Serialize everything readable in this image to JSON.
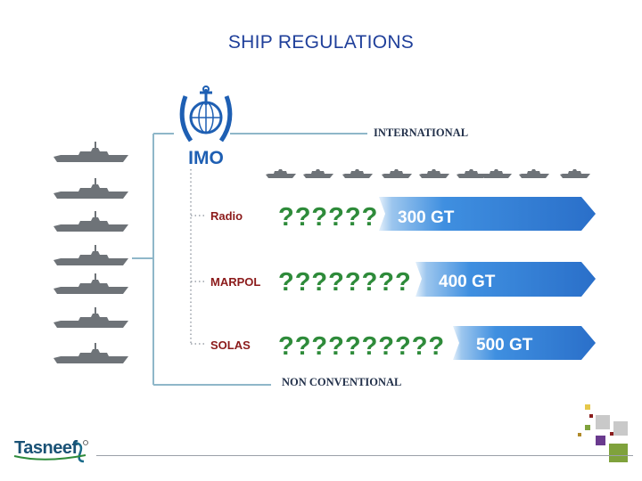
{
  "title": "SHIP REGULATIONS",
  "org": "IMO",
  "international_label": "INTERNATIONAL",
  "non_conventional_label": "NON CONVENTIONAL",
  "regulations": [
    {
      "name": "Radio",
      "marks": "??????",
      "threshold": "300 GT"
    },
    {
      "name": "MARPOL",
      "marks": "????????",
      "threshold": "400 GT"
    },
    {
      "name": "SOLAS",
      "marks": "??????????",
      "threshold": "500 GT"
    }
  ],
  "logo": "Tasneef",
  "colors": {
    "title": "#1f3f9a",
    "marks": "#2e8b3a",
    "arrow": "#2f7fd8",
    "arrow_light": "#e4f0fb",
    "tree_line": "#8fb7c9",
    "label": "#8b1a1a",
    "text_dark": "#22304a"
  },
  "decor_squares": [
    "#e6c84a",
    "#8b1e1e",
    "#c9c9c9",
    "#7fa23c",
    "#c9c9c9",
    "#6a3a8e",
    "#b08a2a",
    "#8b1e1e",
    "#7fa23c"
  ]
}
